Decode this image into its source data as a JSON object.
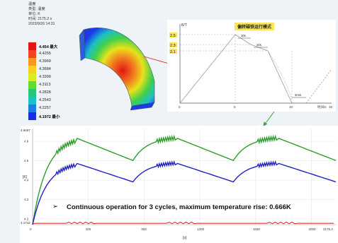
{
  "info": {
    "line1": "温度",
    "line2": "类型: 温度",
    "line3": "单位: K",
    "line4": "时间: 2175.2 s",
    "line5": "2023/9/26 14:31"
  },
  "legend": {
    "entries": [
      {
        "label": "4.454 最大",
        "color": "#e11616",
        "kind": "max"
      },
      {
        "label": "4.4255",
        "color": "#f2461e",
        "kind": "val"
      },
      {
        "label": "4.3969",
        "color": "#f69a1f",
        "kind": "val"
      },
      {
        "label": "4.3684",
        "color": "#f7d11d",
        "kind": "val"
      },
      {
        "label": "4.3399",
        "color": "#d8ee1c",
        "kind": "val"
      },
      {
        "label": "4.3113",
        "color": "#5fdc2c",
        "kind": "val"
      },
      {
        "label": "4.2828",
        "color": "#22c77c",
        "kind": "val"
      },
      {
        "label": "4.2543",
        "color": "#1cc0c8",
        "kind": "val"
      },
      {
        "label": "4.2257",
        "color": "#1b7ee0",
        "kind": "val"
      },
      {
        "label": "4.1972 最小",
        "color": "#1a2ee6",
        "kind": "min"
      }
    ]
  },
  "cycle_diagram": {
    "title": "偏转磁铁运行模式",
    "y_unit": "B/T",
    "x_unit": "时间/s",
    "y_ticks": [
      "2.5",
      "2.3",
      "2.1"
    ],
    "x_ticks": [
      "0",
      "5",
      "10",
      "15"
    ],
    "durations": [
      "20s",
      "20s",
      "3min"
    ]
  },
  "main_chart": {
    "y_unit": "[K]",
    "x_unit": "[s]",
    "y_top_label": "4.6657",
    "y_bottom_label": "4.1712",
    "y_ticks": [
      "4.6",
      "4.5",
      "4.4",
      "4.3",
      "4.2"
    ],
    "x_ticks": [
      "0",
      "400",
      "800",
      "1200",
      "1600",
      "2000"
    ],
    "x_end_label": "2175.2"
  },
  "caption": {
    "bullet": "➢",
    "text": "Continuous operation for 3 cycles, maximum temperature rise: 0.666K"
  },
  "colors": {
    "green_series": "#2f9c2f",
    "blue_series": "#2222c0",
    "red_series": "#d61c1c"
  }
}
